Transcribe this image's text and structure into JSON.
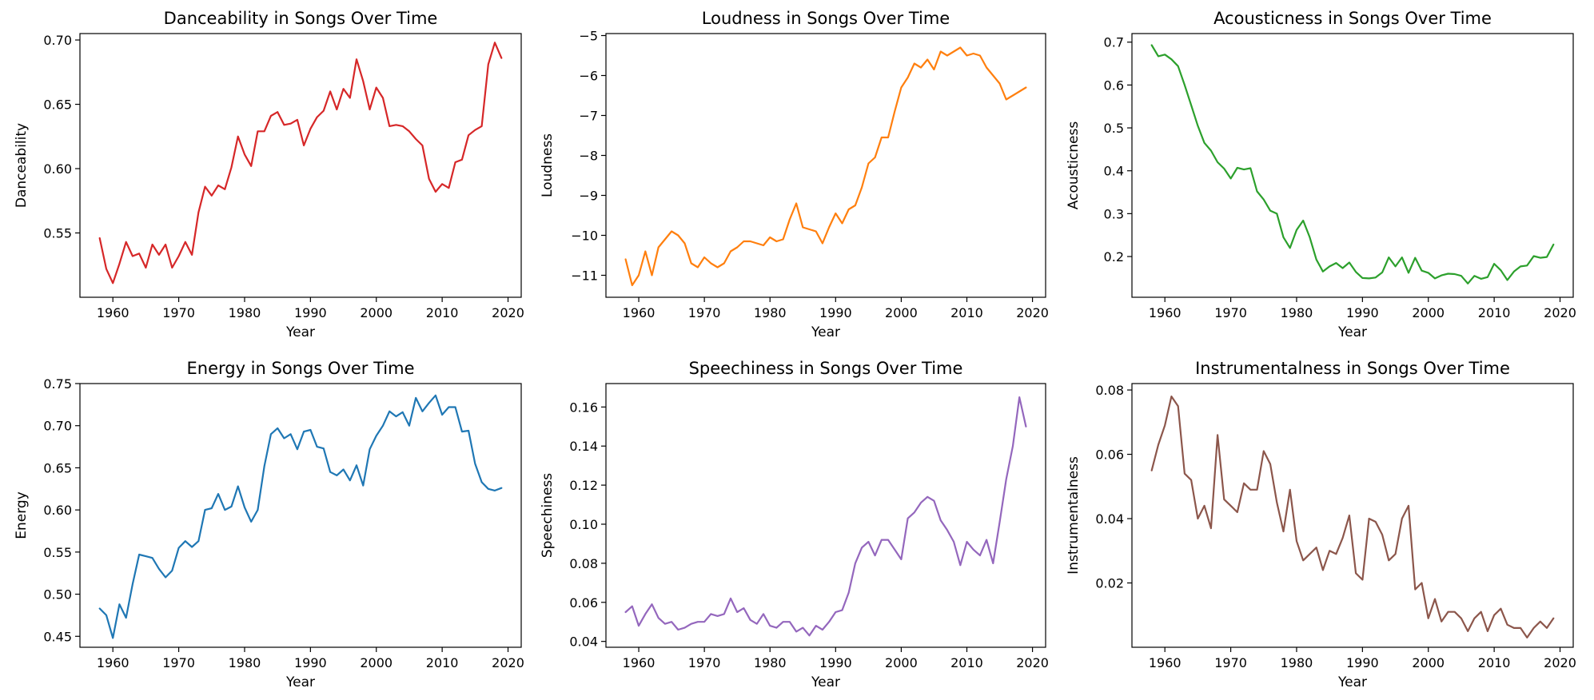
{
  "chart_data": [
    {
      "type": "line",
      "title": "Danceability in Songs Over Time",
      "xlabel": "Year",
      "ylabel": "Danceability",
      "color": "#d62728",
      "xlim": [
        1955,
        2022
      ],
      "ylim": [
        0.5,
        0.705
      ],
      "xticks": [
        1960,
        1970,
        1980,
        1990,
        2000,
        2010,
        2020
      ],
      "yticks": [
        0.55,
        0.6,
        0.65,
        0.7
      ],
      "ytick_labels": [
        "0.55",
        "0.60",
        "0.65",
        "0.70"
      ],
      "grid": false,
      "x": [
        1958,
        1959,
        1960,
        1961,
        1962,
        1963,
        1964,
        1965,
        1966,
        1967,
        1968,
        1969,
        1970,
        1971,
        1972,
        1973,
        1974,
        1975,
        1976,
        1977,
        1978,
        1979,
        1980,
        1981,
        1982,
        1983,
        1984,
        1985,
        1986,
        1987,
        1988,
        1989,
        1990,
        1991,
        1992,
        1993,
        1994,
        1995,
        1996,
        1997,
        1998,
        1999,
        2000,
        2001,
        2002,
        2003,
        2004,
        2005,
        2006,
        2007,
        2008,
        2009,
        2010,
        2011,
        2012,
        2013,
        2014,
        2015,
        2016,
        2017,
        2018,
        2019
      ],
      "y": [
        0.546,
        0.522,
        0.511,
        0.526,
        0.543,
        0.532,
        0.534,
        0.523,
        0.541,
        0.533,
        0.541,
        0.523,
        0.532,
        0.543,
        0.533,
        0.566,
        0.586,
        0.579,
        0.587,
        0.584,
        0.601,
        0.625,
        0.611,
        0.602,
        0.629,
        0.629,
        0.641,
        0.644,
        0.634,
        0.635,
        0.638,
        0.618,
        0.631,
        0.64,
        0.645,
        0.66,
        0.646,
        0.662,
        0.655,
        0.685,
        0.668,
        0.646,
        0.663,
        0.655,
        0.633,
        0.634,
        0.633,
        0.629,
        0.623,
        0.618,
        0.592,
        0.582,
        0.588,
        0.585,
        0.605,
        0.607,
        0.626,
        0.63,
        0.633,
        0.681,
        0.698,
        0.686
      ]
    },
    {
      "type": "line",
      "title": "Loudness in Songs Over Time",
      "xlabel": "Year",
      "ylabel": "Loudness",
      "color": "#ff7f0e",
      "xlim": [
        1955,
        2022
      ],
      "ylim": [
        -11.55,
        -4.95
      ],
      "xticks": [
        1960,
        1970,
        1980,
        1990,
        2000,
        2010,
        2020
      ],
      "yticks": [
        -11,
        -10,
        -9,
        -8,
        -7,
        -6,
        -5
      ],
      "ytick_labels": [
        "−11",
        "−10",
        "−9",
        "−8",
        "−7",
        "−6",
        "−5"
      ],
      "grid": false,
      "x": [
        1958,
        1959,
        1960,
        1961,
        1962,
        1963,
        1964,
        1965,
        1966,
        1967,
        1968,
        1969,
        1970,
        1971,
        1972,
        1973,
        1974,
        1975,
        1976,
        1977,
        1978,
        1979,
        1980,
        1981,
        1982,
        1983,
        1984,
        1985,
        1986,
        1987,
        1988,
        1989,
        1990,
        1991,
        1992,
        1993,
        1994,
        1995,
        1996,
        1997,
        1998,
        1999,
        2000,
        2001,
        2002,
        2003,
        2004,
        2005,
        2006,
        2007,
        2008,
        2009,
        2010,
        2011,
        2012,
        2013,
        2014,
        2015,
        2016,
        2017,
        2018,
        2019
      ],
      "y": [
        -10.6,
        -11.25,
        -11.0,
        -10.4,
        -11.0,
        -10.3,
        -10.1,
        -9.9,
        -10.0,
        -10.2,
        -10.7,
        -10.8,
        -10.55,
        -10.7,
        -10.8,
        -10.7,
        -10.4,
        -10.3,
        -10.15,
        -10.15,
        -10.2,
        -10.25,
        -10.05,
        -10.15,
        -10.1,
        -9.6,
        -9.2,
        -9.8,
        -9.85,
        -9.9,
        -10.2,
        -9.8,
        -9.45,
        -9.7,
        -9.35,
        -9.25,
        -8.8,
        -8.2,
        -8.05,
        -7.55,
        -7.55,
        -6.9,
        -6.3,
        -6.05,
        -5.7,
        -5.8,
        -5.6,
        -5.85,
        -5.4,
        -5.5,
        -5.4,
        -5.3,
        -5.5,
        -5.45,
        -5.5,
        -5.8,
        -6.0,
        -6.2,
        -6.6,
        -6.5,
        -6.4,
        -6.3
      ]
    },
    {
      "type": "line",
      "title": "Acousticness in Songs Over Time",
      "xlabel": "Year",
      "ylabel": "Acousticness",
      "color": "#2ca02c",
      "xlim": [
        1955,
        2022
      ],
      "ylim": [
        0.105,
        0.72
      ],
      "xticks": [
        1960,
        1970,
        1980,
        1990,
        2000,
        2010,
        2020
      ],
      "yticks": [
        0.2,
        0.3,
        0.4,
        0.5,
        0.6,
        0.7
      ],
      "ytick_labels": [
        "0.2",
        "0.3",
        "0.4",
        "0.5",
        "0.6",
        "0.7"
      ],
      "grid": false,
      "x": [
        1958,
        1959,
        1960,
        1961,
        1962,
        1963,
        1964,
        1965,
        1966,
        1967,
        1968,
        1969,
        1970,
        1971,
        1972,
        1973,
        1974,
        1975,
        1976,
        1977,
        1978,
        1979,
        1980,
        1981,
        1982,
        1983,
        1984,
        1985,
        1986,
        1987,
        1988,
        1989,
        1990,
        1991,
        1992,
        1993,
        1994,
        1995,
        1996,
        1997,
        1998,
        1999,
        2000,
        2001,
        2002,
        2003,
        2004,
        2005,
        2006,
        2007,
        2008,
        2009,
        2010,
        2011,
        2012,
        2013,
        2014,
        2015,
        2016,
        2017,
        2018,
        2019
      ],
      "y": [
        0.693,
        0.667,
        0.671,
        0.66,
        0.644,
        0.6,
        0.553,
        0.505,
        0.465,
        0.447,
        0.42,
        0.405,
        0.382,
        0.407,
        0.403,
        0.406,
        0.352,
        0.333,
        0.307,
        0.3,
        0.245,
        0.22,
        0.262,
        0.284,
        0.245,
        0.193,
        0.165,
        0.177,
        0.185,
        0.173,
        0.186,
        0.164,
        0.15,
        0.149,
        0.151,
        0.163,
        0.198,
        0.177,
        0.198,
        0.162,
        0.197,
        0.167,
        0.162,
        0.149,
        0.156,
        0.16,
        0.159,
        0.155,
        0.137,
        0.155,
        0.148,
        0.152,
        0.183,
        0.168,
        0.145,
        0.165,
        0.177,
        0.179,
        0.201,
        0.197,
        0.199,
        0.228
      ]
    },
    {
      "type": "line",
      "title": "Energy in Songs Over Time",
      "xlabel": "Year",
      "ylabel": "Energy",
      "color": "#1f77b4",
      "xlim": [
        1955,
        2022
      ],
      "ylim": [
        0.437,
        0.75
      ],
      "xticks": [
        1960,
        1970,
        1980,
        1990,
        2000,
        2010,
        2020
      ],
      "yticks": [
        0.45,
        0.5,
        0.55,
        0.6,
        0.65,
        0.7,
        0.75
      ],
      "ytick_labels": [
        "0.45",
        "0.50",
        "0.55",
        "0.60",
        "0.65",
        "0.70",
        "0.75"
      ],
      "grid": false,
      "x": [
        1958,
        1959,
        1960,
        1961,
        1962,
        1963,
        1964,
        1965,
        1966,
        1967,
        1968,
        1969,
        1970,
        1971,
        1972,
        1973,
        1974,
        1975,
        1976,
        1977,
        1978,
        1979,
        1980,
        1981,
        1982,
        1983,
        1984,
        1985,
        1986,
        1987,
        1988,
        1989,
        1990,
        1991,
        1992,
        1993,
        1994,
        1995,
        1996,
        1997,
        1998,
        1999,
        2000,
        2001,
        2002,
        2003,
        2004,
        2005,
        2006,
        2007,
        2008,
        2009,
        2010,
        2011,
        2012,
        2013,
        2014,
        2015,
        2016,
        2017,
        2018,
        2019
      ],
      "y": [
        0.483,
        0.475,
        0.448,
        0.488,
        0.472,
        0.512,
        0.547,
        0.545,
        0.543,
        0.53,
        0.52,
        0.528,
        0.555,
        0.563,
        0.556,
        0.563,
        0.6,
        0.602,
        0.619,
        0.6,
        0.604,
        0.628,
        0.603,
        0.586,
        0.6,
        0.652,
        0.69,
        0.697,
        0.685,
        0.69,
        0.672,
        0.693,
        0.695,
        0.675,
        0.673,
        0.645,
        0.641,
        0.648,
        0.635,
        0.653,
        0.629,
        0.672,
        0.688,
        0.7,
        0.717,
        0.711,
        0.716,
        0.7,
        0.733,
        0.717,
        0.727,
        0.736,
        0.713,
        0.722,
        0.722,
        0.693,
        0.694,
        0.655,
        0.633,
        0.625,
        0.623,
        0.626
      ]
    },
    {
      "type": "line",
      "title": "Speechiness in Songs Over Time",
      "xlabel": "Year",
      "ylabel": "Speechiness",
      "color": "#9467bd",
      "xlim": [
        1955,
        2022
      ],
      "ylim": [
        0.037,
        0.172
      ],
      "xticks": [
        1960,
        1970,
        1980,
        1990,
        2000,
        2010,
        2020
      ],
      "yticks": [
        0.04,
        0.06,
        0.08,
        0.1,
        0.12,
        0.14,
        0.16
      ],
      "ytick_labels": [
        "0.04",
        "0.06",
        "0.08",
        "0.10",
        "0.12",
        "0.14",
        "0.16"
      ],
      "grid": false,
      "x": [
        1958,
        1959,
        1960,
        1961,
        1962,
        1963,
        1964,
        1965,
        1966,
        1967,
        1968,
        1969,
        1970,
        1971,
        1972,
        1973,
        1974,
        1975,
        1976,
        1977,
        1978,
        1979,
        1980,
        1981,
        1982,
        1983,
        1984,
        1985,
        1986,
        1987,
        1988,
        1989,
        1990,
        1991,
        1992,
        1993,
        1994,
        1995,
        1996,
        1997,
        1998,
        1999,
        2000,
        2001,
        2002,
        2003,
        2004,
        2005,
        2006,
        2007,
        2008,
        2009,
        2010,
        2011,
        2012,
        2013,
        2014,
        2015,
        2016,
        2017,
        2018,
        2019
      ],
      "y": [
        0.055,
        0.058,
        0.048,
        0.054,
        0.059,
        0.052,
        0.049,
        0.05,
        0.046,
        0.047,
        0.049,
        0.05,
        0.05,
        0.054,
        0.053,
        0.054,
        0.062,
        0.055,
        0.057,
        0.051,
        0.049,
        0.054,
        0.048,
        0.047,
        0.05,
        0.05,
        0.045,
        0.047,
        0.043,
        0.048,
        0.046,
        0.05,
        0.055,
        0.056,
        0.065,
        0.08,
        0.088,
        0.091,
        0.084,
        0.092,
        0.092,
        0.087,
        0.082,
        0.103,
        0.106,
        0.111,
        0.114,
        0.112,
        0.102,
        0.097,
        0.091,
        0.079,
        0.091,
        0.087,
        0.084,
        0.092,
        0.08,
        0.101,
        0.123,
        0.14,
        0.165,
        0.15
      ]
    },
    {
      "type": "line",
      "title": "Instrumentalness in Songs Over Time",
      "xlabel": "Year",
      "ylabel": "Instrumentalness",
      "color": "#8c564b",
      "xlim": [
        1955,
        2022
      ],
      "ylim": [
        0.0,
        0.082
      ],
      "xticks": [
        1960,
        1970,
        1980,
        1990,
        2000,
        2010,
        2020
      ],
      "yticks": [
        0.02,
        0.04,
        0.06,
        0.08
      ],
      "ytick_labels": [
        "0.02",
        "0.04",
        "0.06",
        "0.08"
      ],
      "grid": false,
      "x": [
        1958,
        1959,
        1960,
        1961,
        1962,
        1963,
        1964,
        1965,
        1966,
        1967,
        1968,
        1969,
        1970,
        1971,
        1972,
        1973,
        1974,
        1975,
        1976,
        1977,
        1978,
        1979,
        1980,
        1981,
        1982,
        1983,
        1984,
        1985,
        1986,
        1987,
        1988,
        1989,
        1990,
        1991,
        1992,
        1993,
        1994,
        1995,
        1996,
        1997,
        1998,
        1999,
        2000,
        2001,
        2002,
        2003,
        2004,
        2005,
        2006,
        2007,
        2008,
        2009,
        2010,
        2011,
        2012,
        2013,
        2014,
        2015,
        2016,
        2017,
        2018,
        2019
      ],
      "y": [
        0.055,
        0.063,
        0.069,
        0.078,
        0.075,
        0.054,
        0.052,
        0.04,
        0.044,
        0.037,
        0.066,
        0.046,
        0.044,
        0.042,
        0.051,
        0.049,
        0.049,
        0.061,
        0.057,
        0.045,
        0.036,
        0.049,
        0.033,
        0.027,
        0.029,
        0.031,
        0.024,
        0.03,
        0.029,
        0.034,
        0.041,
        0.023,
        0.021,
        0.04,
        0.039,
        0.035,
        0.027,
        0.029,
        0.04,
        0.044,
        0.018,
        0.02,
        0.009,
        0.015,
        0.008,
        0.011,
        0.011,
        0.009,
        0.005,
        0.009,
        0.011,
        0.005,
        0.01,
        0.012,
        0.007,
        0.006,
        0.006,
        0.003,
        0.006,
        0.008,
        0.006,
        0.009
      ]
    }
  ]
}
